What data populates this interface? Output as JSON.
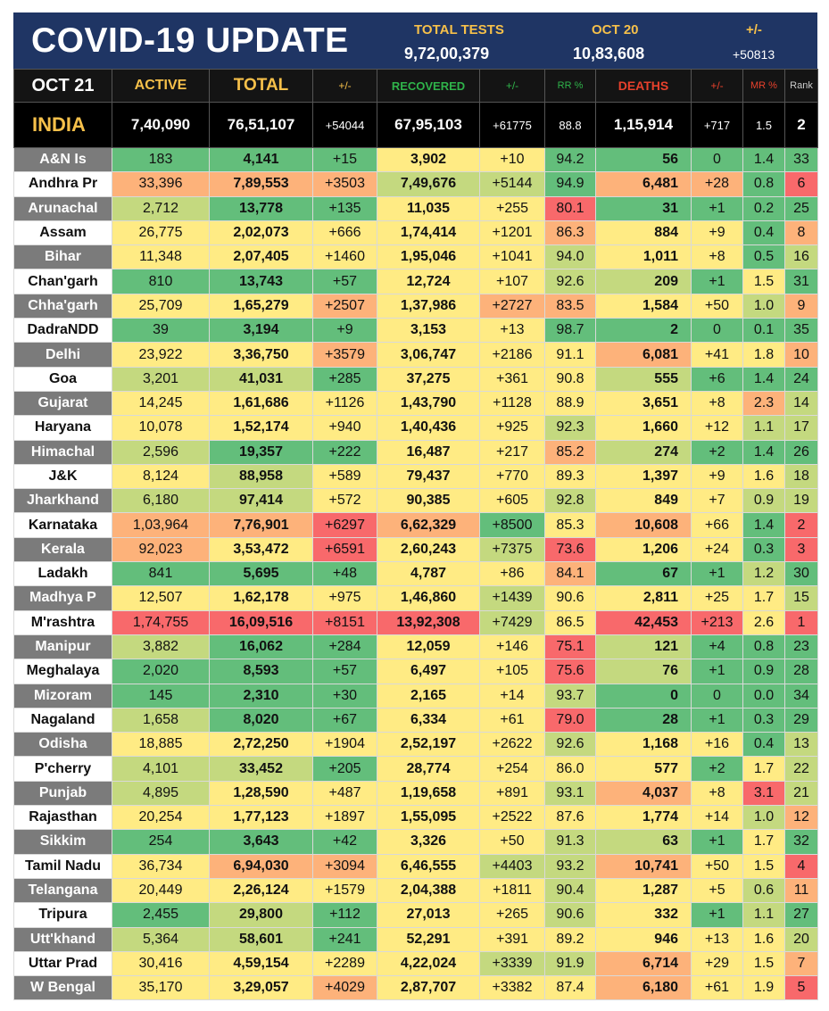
{
  "title": "COVID-19 UPDATE",
  "tests": {
    "label": "TOTAL TESTS",
    "value": "9,72,00,379"
  },
  "prev": {
    "label": "OCT 20",
    "value": "10,83,608"
  },
  "delta": {
    "label": "+/-",
    "value": "+50813"
  },
  "headers": {
    "date": "OCT 21",
    "active": "ACTIVE",
    "total": "TOTAL",
    "total_change": "+/-",
    "recovered": "RECOVERED",
    "rec_change": "+/-",
    "rr": "RR %",
    "deaths": "DEATHS",
    "death_change": "+/-",
    "mr": "MR %",
    "rank": "Rank"
  },
  "colors": {
    "header_bg": "#1f3564",
    "header_label": "#f6c04a",
    "active_label": "#f6c04a",
    "recovered_label": "#2fb34a",
    "deaths_label": "#e8412c",
    "dark_green": "#63be7b",
    "green": "#8ccb7e",
    "light_green": "#c4d97f",
    "yellow": "#ffeb84",
    "orange": "#fdb27a",
    "red": "#f8696b"
  },
  "india": {
    "name": "INDIA",
    "active": "7,40,090",
    "total": "76,51,107",
    "total_change": "+54044",
    "recovered": "67,95,103",
    "rec_change": "+61775",
    "rr": "88.8",
    "deaths": "1,15,914",
    "death_change": "+717",
    "mr": "1.5",
    "rank": "2"
  },
  "rows": [
    [
      "A&N Is",
      "183",
      "4,141",
      "+15",
      "3,902",
      "+10",
      "94.2",
      "56",
      "0",
      "1.4",
      "33"
    ],
    [
      "Andhra Pr",
      "33,396",
      "7,89,553",
      "+3503",
      "7,49,676",
      "+5144",
      "94.9",
      "6,481",
      "+28",
      "0.8",
      "6"
    ],
    [
      "Arunachal",
      "2,712",
      "13,778",
      "+135",
      "11,035",
      "+255",
      "80.1",
      "31",
      "+1",
      "0.2",
      "25"
    ],
    [
      "Assam",
      "26,775",
      "2,02,073",
      "+666",
      "1,74,414",
      "+1201",
      "86.3",
      "884",
      "+9",
      "0.4",
      "8"
    ],
    [
      "Bihar",
      "11,348",
      "2,07,405",
      "+1460",
      "1,95,046",
      "+1041",
      "94.0",
      "1,011",
      "+8",
      "0.5",
      "16"
    ],
    [
      "Chan'garh",
      "810",
      "13,743",
      "+57",
      "12,724",
      "+107",
      "92.6",
      "209",
      "+1",
      "1.5",
      "31"
    ],
    [
      "Chha'garh",
      "25,709",
      "1,65,279",
      "+2507",
      "1,37,986",
      "+2727",
      "83.5",
      "1,584",
      "+50",
      "1.0",
      "9"
    ],
    [
      "DadraNDD",
      "39",
      "3,194",
      "+9",
      "3,153",
      "+13",
      "98.7",
      "2",
      "0",
      "0.1",
      "35"
    ],
    [
      "Delhi",
      "23,922",
      "3,36,750",
      "+3579",
      "3,06,747",
      "+2186",
      "91.1",
      "6,081",
      "+41",
      "1.8",
      "10"
    ],
    [
      "Goa",
      "3,201",
      "41,031",
      "+285",
      "37,275",
      "+361",
      "90.8",
      "555",
      "+6",
      "1.4",
      "24"
    ],
    [
      "Gujarat",
      "14,245",
      "1,61,686",
      "+1126",
      "1,43,790",
      "+1128",
      "88.9",
      "3,651",
      "+8",
      "2.3",
      "14"
    ],
    [
      "Haryana",
      "10,078",
      "1,52,174",
      "+940",
      "1,40,436",
      "+925",
      "92.3",
      "1,660",
      "+12",
      "1.1",
      "17"
    ],
    [
      "Himachal",
      "2,596",
      "19,357",
      "+222",
      "16,487",
      "+217",
      "85.2",
      "274",
      "+2",
      "1.4",
      "26"
    ],
    [
      "J&K",
      "8,124",
      "88,958",
      "+589",
      "79,437",
      "+770",
      "89.3",
      "1,397",
      "+9",
      "1.6",
      "18"
    ],
    [
      "Jharkhand",
      "6,180",
      "97,414",
      "+572",
      "90,385",
      "+605",
      "92.8",
      "849",
      "+7",
      "0.9",
      "19"
    ],
    [
      "Karnataka",
      "1,03,964",
      "7,76,901",
      "+6297",
      "6,62,329",
      "+8500",
      "85.3",
      "10,608",
      "+66",
      "1.4",
      "2"
    ],
    [
      "Kerala",
      "92,023",
      "3,53,472",
      "+6591",
      "2,60,243",
      "+7375",
      "73.6",
      "1,206",
      "+24",
      "0.3",
      "3"
    ],
    [
      "Ladakh",
      "841",
      "5,695",
      "+48",
      "4,787",
      "+86",
      "84.1",
      "67",
      "+1",
      "1.2",
      "30"
    ],
    [
      "Madhya P",
      "12,507",
      "1,62,178",
      "+975",
      "1,46,860",
      "+1439",
      "90.6",
      "2,811",
      "+25",
      "1.7",
      "15"
    ],
    [
      "M'rashtra",
      "1,74,755",
      "16,09,516",
      "+8151",
      "13,92,308",
      "+7429",
      "86.5",
      "42,453",
      "+213",
      "2.6",
      "1"
    ],
    [
      "Manipur",
      "3,882",
      "16,062",
      "+284",
      "12,059",
      "+146",
      "75.1",
      "121",
      "+4",
      "0.8",
      "23"
    ],
    [
      "Meghalaya",
      "2,020",
      "8,593",
      "+57",
      "6,497",
      "+105",
      "75.6",
      "76",
      "+1",
      "0.9",
      "28"
    ],
    [
      "Mizoram",
      "145",
      "2,310",
      "+30",
      "2,165",
      "+14",
      "93.7",
      "0",
      "0",
      "0.0",
      "34"
    ],
    [
      "Nagaland",
      "1,658",
      "8,020",
      "+67",
      "6,334",
      "+61",
      "79.0",
      "28",
      "+1",
      "0.3",
      "29"
    ],
    [
      "Odisha",
      "18,885",
      "2,72,250",
      "+1904",
      "2,52,197",
      "+2622",
      "92.6",
      "1,168",
      "+16",
      "0.4",
      "13"
    ],
    [
      "P'cherry",
      "4,101",
      "33,452",
      "+205",
      "28,774",
      "+254",
      "86.0",
      "577",
      "+2",
      "1.7",
      "22"
    ],
    [
      "Punjab",
      "4,895",
      "1,28,590",
      "+487",
      "1,19,658",
      "+891",
      "93.1",
      "4,037",
      "+8",
      "3.1",
      "21"
    ],
    [
      "Rajasthan",
      "20,254",
      "1,77,123",
      "+1897",
      "1,55,095",
      "+2522",
      "87.6",
      "1,774",
      "+14",
      "1.0",
      "12"
    ],
    [
      "Sikkim",
      "254",
      "3,643",
      "+42",
      "3,326",
      "+50",
      "91.3",
      "63",
      "+1",
      "1.7",
      "32"
    ],
    [
      "Tamil Nadu",
      "36,734",
      "6,94,030",
      "+3094",
      "6,46,555",
      "+4403",
      "93.2",
      "10,741",
      "+50",
      "1.5",
      "4"
    ],
    [
      "Telangana",
      "20,449",
      "2,26,124",
      "+1579",
      "2,04,388",
      "+1811",
      "90.4",
      "1,287",
      "+5",
      "0.6",
      "11"
    ],
    [
      "Tripura",
      "2,455",
      "29,800",
      "+112",
      "27,013",
      "+265",
      "90.6",
      "332",
      "+1",
      "1.1",
      "27"
    ],
    [
      "Utt'khand",
      "5,364",
      "58,601",
      "+241",
      "52,291",
      "+391",
      "89.2",
      "946",
      "+13",
      "1.6",
      "20"
    ],
    [
      "Uttar Prad",
      "30,416",
      "4,59,154",
      "+2289",
      "4,22,024",
      "+3339",
      "91.9",
      "6,714",
      "+29",
      "1.5",
      "7"
    ],
    [
      "W Bengal",
      "35,170",
      "3,29,057",
      "+4029",
      "2,87,707",
      "+3382",
      "87.4",
      "6,180",
      "+61",
      "1.9",
      "5"
    ]
  ],
  "row_colors": [
    [
      "g",
      "dg",
      "dg",
      "dg",
      "y",
      "y",
      "dg",
      "dg",
      "dg",
      "dg",
      "dg"
    ],
    [
      "w",
      "o",
      "o",
      "o",
      "lg",
      "lg",
      "dg",
      "o",
      "o",
      "dg",
      "r"
    ],
    [
      "g",
      "lg",
      "dg",
      "dg",
      "y",
      "y",
      "r",
      "dg",
      "dg",
      "dg",
      "dg"
    ],
    [
      "w",
      "y",
      "y",
      "y",
      "y",
      "y",
      "o",
      "y",
      "y",
      "dg",
      "o"
    ],
    [
      "g",
      "y",
      "y",
      "y",
      "y",
      "y",
      "lg",
      "y",
      "y",
      "dg",
      "lg"
    ],
    [
      "w",
      "dg",
      "dg",
      "dg",
      "y",
      "y",
      "lg",
      "lg",
      "dg",
      "y",
      "dg"
    ],
    [
      "g",
      "y",
      "y",
      "o",
      "y",
      "o",
      "o",
      "y",
      "y",
      "lg",
      "o"
    ],
    [
      "w",
      "dg",
      "dg",
      "dg",
      "y",
      "y",
      "dg",
      "dg",
      "dg",
      "dg",
      "dg"
    ],
    [
      "g",
      "y",
      "y",
      "o",
      "y",
      "y",
      "y",
      "o",
      "y",
      "y",
      "o"
    ],
    [
      "w",
      "lg",
      "lg",
      "dg",
      "y",
      "y",
      "y",
      "lg",
      "dg",
      "dg",
      "dg"
    ],
    [
      "g",
      "y",
      "y",
      "y",
      "y",
      "y",
      "y",
      "y",
      "y",
      "o",
      "lg"
    ],
    [
      "w",
      "y",
      "y",
      "y",
      "y",
      "y",
      "lg",
      "y",
      "y",
      "lg",
      "lg"
    ],
    [
      "g",
      "lg",
      "dg",
      "dg",
      "y",
      "y",
      "o",
      "lg",
      "dg",
      "dg",
      "dg"
    ],
    [
      "w",
      "y",
      "lg",
      "y",
      "y",
      "y",
      "y",
      "y",
      "y",
      "y",
      "lg"
    ],
    [
      "g",
      "lg",
      "lg",
      "y",
      "y",
      "y",
      "lg",
      "y",
      "y",
      "lg",
      "lg"
    ],
    [
      "w",
      "o",
      "o",
      "r",
      "o",
      "dg",
      "y",
      "o",
      "y",
      "dg",
      "r"
    ],
    [
      "g",
      "o",
      "y",
      "r",
      "y",
      "lg",
      "r",
      "y",
      "y",
      "dg",
      "r"
    ],
    [
      "w",
      "dg",
      "dg",
      "dg",
      "y",
      "y",
      "o",
      "dg",
      "dg",
      "lg",
      "dg"
    ],
    [
      "g",
      "y",
      "y",
      "y",
      "y",
      "lg",
      "y",
      "y",
      "y",
      "y",
      "lg"
    ],
    [
      "w",
      "r",
      "r",
      "r",
      "r",
      "lg",
      "y",
      "r",
      "r",
      "y",
      "r"
    ],
    [
      "g",
      "lg",
      "dg",
      "dg",
      "y",
      "y",
      "r",
      "lg",
      "dg",
      "dg",
      "dg"
    ],
    [
      "w",
      "dg",
      "dg",
      "dg",
      "y",
      "y",
      "r",
      "lg",
      "dg",
      "dg",
      "dg"
    ],
    [
      "g",
      "dg",
      "dg",
      "dg",
      "y",
      "y",
      "lg",
      "dg",
      "dg",
      "dg",
      "dg"
    ],
    [
      "w",
      "lg",
      "dg",
      "dg",
      "y",
      "y",
      "r",
      "dg",
      "dg",
      "dg",
      "dg"
    ],
    [
      "g",
      "y",
      "y",
      "y",
      "y",
      "y",
      "lg",
      "y",
      "y",
      "dg",
      "lg"
    ],
    [
      "w",
      "lg",
      "lg",
      "dg",
      "y",
      "y",
      "y",
      "y",
      "dg",
      "y",
      "lg"
    ],
    [
      "g",
      "lg",
      "y",
      "y",
      "y",
      "y",
      "lg",
      "o",
      "y",
      "r",
      "lg"
    ],
    [
      "w",
      "y",
      "y",
      "y",
      "y",
      "y",
      "y",
      "y",
      "y",
      "lg",
      "o"
    ],
    [
      "g",
      "dg",
      "dg",
      "dg",
      "y",
      "y",
      "lg",
      "lg",
      "dg",
      "y",
      "dg"
    ],
    [
      "w",
      "y",
      "o",
      "o",
      "y",
      "lg",
      "lg",
      "o",
      "y",
      "y",
      "r"
    ],
    [
      "g",
      "y",
      "y",
      "y",
      "y",
      "y",
      "lg",
      "y",
      "y",
      "lg",
      "o"
    ],
    [
      "w",
      "dg",
      "lg",
      "dg",
      "y",
      "y",
      "lg",
      "y",
      "dg",
      "lg",
      "dg"
    ],
    [
      "g",
      "lg",
      "lg",
      "dg",
      "y",
      "y",
      "y",
      "y",
      "y",
      "y",
      "lg"
    ],
    [
      "w",
      "y",
      "y",
      "y",
      "y",
      "lg",
      "lg",
      "o",
      "y",
      "y",
      "o"
    ],
    [
      "g",
      "y",
      "y",
      "o",
      "y",
      "y",
      "y",
      "o",
      "y",
      "y",
      "r"
    ]
  ]
}
